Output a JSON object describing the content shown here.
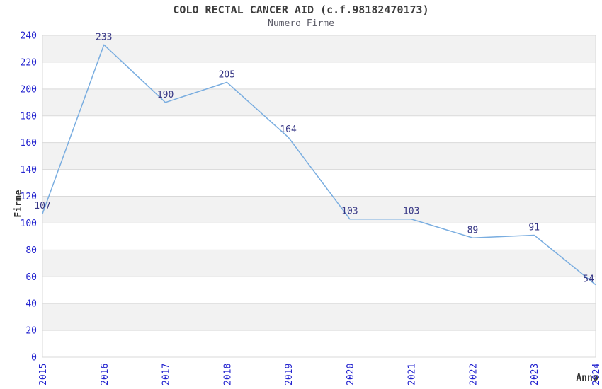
{
  "title": "COLO RECTAL CANCER AID (c.f.98182470173)",
  "subtitle": "Numero Firme",
  "chart_data": {
    "type": "line",
    "categories": [
      "2015",
      "2016",
      "2017",
      "2018",
      "2019",
      "2020",
      "2021",
      "2022",
      "2023",
      "2024"
    ],
    "values": [
      107,
      233,
      190,
      205,
      164,
      103,
      103,
      89,
      91,
      54
    ],
    "title": "COLO RECTAL CANCER AID (c.f.98182470173)",
    "subtitle": "Numero Firme",
    "xlabel": "Anno",
    "ylabel": "Firme",
    "ylim": [
      0,
      240
    ],
    "ytick_step": 20,
    "yticks": [
      0,
      20,
      40,
      60,
      80,
      100,
      120,
      140,
      160,
      180,
      200,
      220,
      240
    ],
    "grid": "horizontal-alternating-bands",
    "legend": "none",
    "point_labels_visible": true,
    "colors": {
      "line": "#79ade0",
      "point_label": "#363685",
      "tick_label": "#2323cf",
      "band": "#f2f2f2",
      "grid_line": "#d9d9d9",
      "axis_title": "#333333",
      "title_text": "#3c3c3c",
      "subtitle_text": "#5a5a66",
      "background": "#ffffff"
    }
  }
}
